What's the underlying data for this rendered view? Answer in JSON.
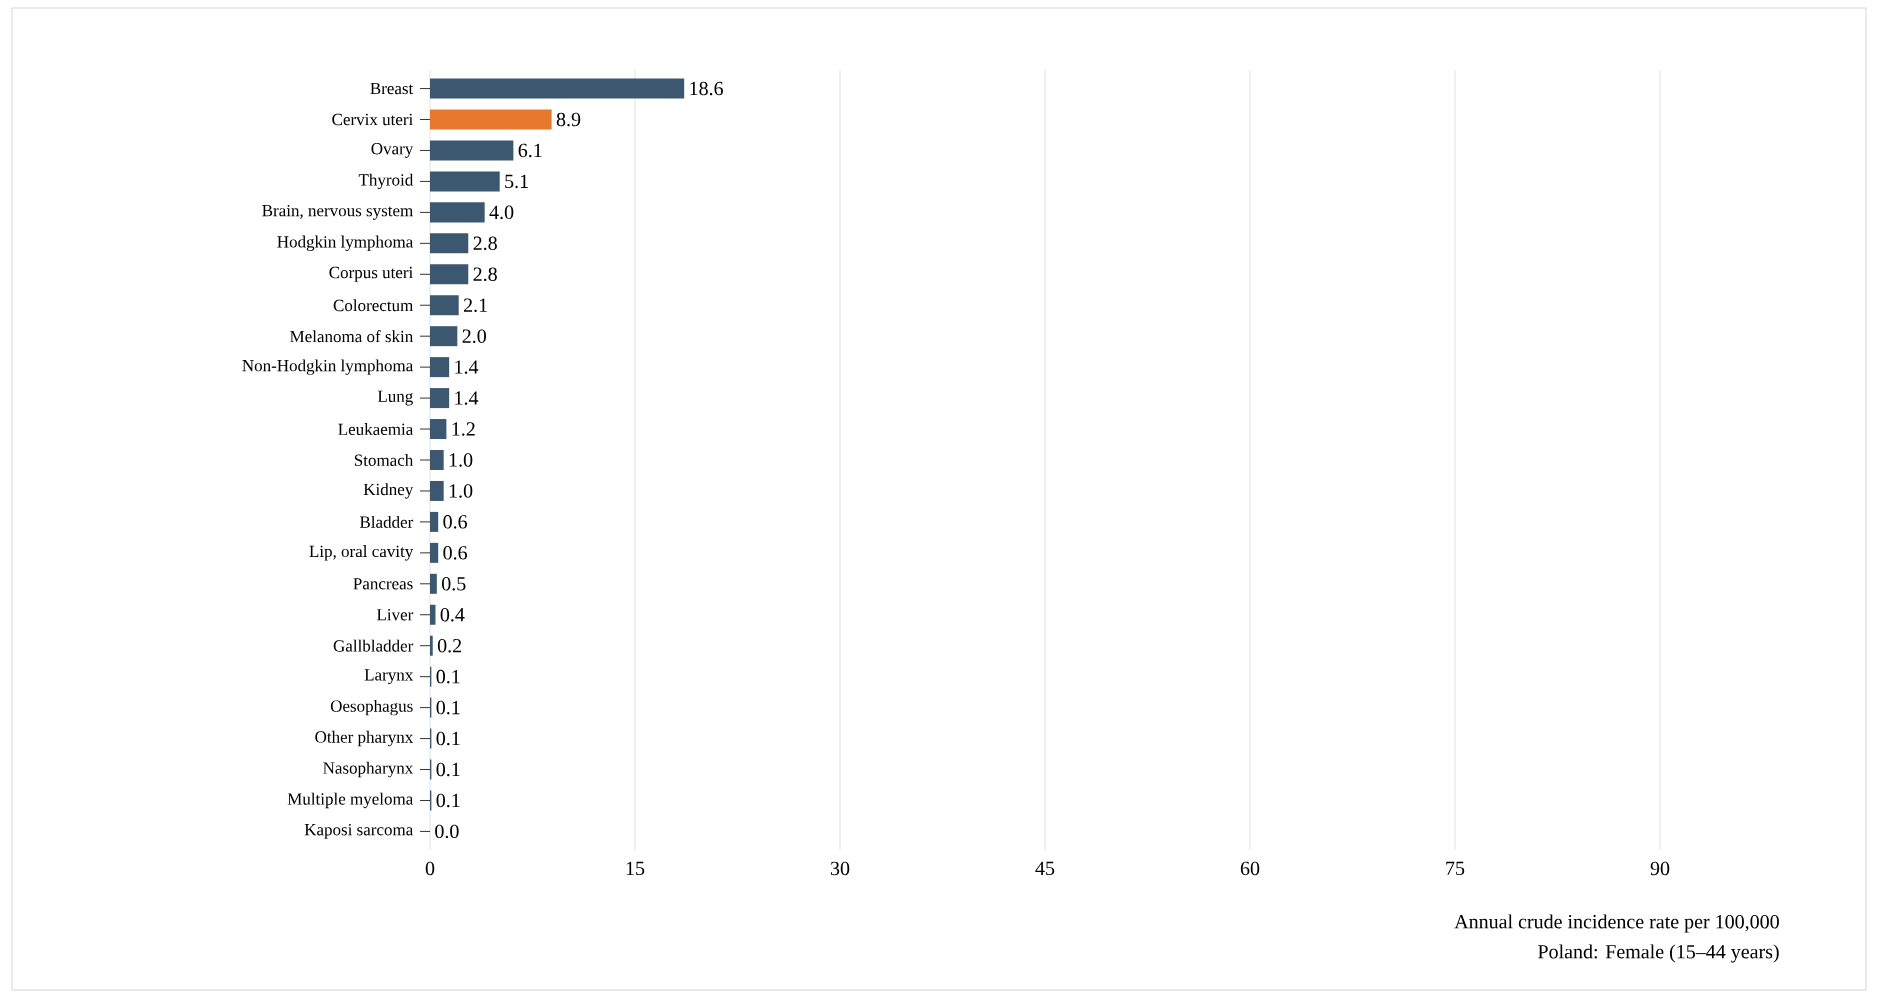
{
  "chart_data": {
    "type": "bar",
    "orientation": "horizontal",
    "categories": [
      "Breast",
      "Cervix uteri",
      "Ovary",
      "Thyroid",
      "Brain, nervous system",
      "Hodgkin lymphoma",
      "Corpus uteri",
      "Colorectum",
      "Melanoma of skin",
      "Non-Hodgkin lymphoma",
      "Lung",
      "Leukaemia",
      "Stomach",
      "Kidney",
      "Bladder",
      "Lip, oral cavity",
      "Pancreas",
      "Liver",
      "Gallbladder",
      "Larynx",
      "Oesophagus",
      "Other pharynx",
      "Nasopharynx",
      "Multiple myeloma",
      "Kaposi sarcoma"
    ],
    "values": [
      18.6,
      8.9,
      6.1,
      5.1,
      4.0,
      2.8,
      2.8,
      2.1,
      2.0,
      1.4,
      1.4,
      1.2,
      1.0,
      1.0,
      0.6,
      0.6,
      0.5,
      0.4,
      0.2,
      0.1,
      0.1,
      0.1,
      0.1,
      0.1,
      0.0
    ],
    "colors": [
      "#3c5870",
      "#e8782e",
      "#3c5870",
      "#3c5870",
      "#3c5870",
      "#3c5870",
      "#3c5870",
      "#3c5870",
      "#3c5870",
      "#3c5870",
      "#3c5870",
      "#3c5870",
      "#3c5870",
      "#3c5870",
      "#3c5870",
      "#3c5870",
      "#3c5870",
      "#3c5870",
      "#3c5870",
      "#3c5870",
      "#3c5870",
      "#3c5870",
      "#3c5870",
      "#3c5870",
      "#3c5870"
    ],
    "value_labels": [
      "18.6",
      "8.9",
      "6.1",
      "5.1",
      "4.0",
      "2.8",
      "2.8",
      "2.1",
      "2.0",
      "1.4",
      "1.4",
      "1.2",
      "1.0",
      "1.0",
      "0.6",
      "0.6",
      "0.5",
      "0.4",
      "0.2",
      "0.1",
      "0.1",
      "0.1",
      "0.1",
      "0.1",
      "0.0"
    ],
    "xlim": [
      0,
      90
    ],
    "xticks": [
      0,
      15,
      30,
      45,
      60,
      75,
      90
    ],
    "grid": "x",
    "xlabel": "Annual crude incidence rate per 100,000",
    "annotations": [
      "Poland: Female (15–44 years)"
    ]
  }
}
